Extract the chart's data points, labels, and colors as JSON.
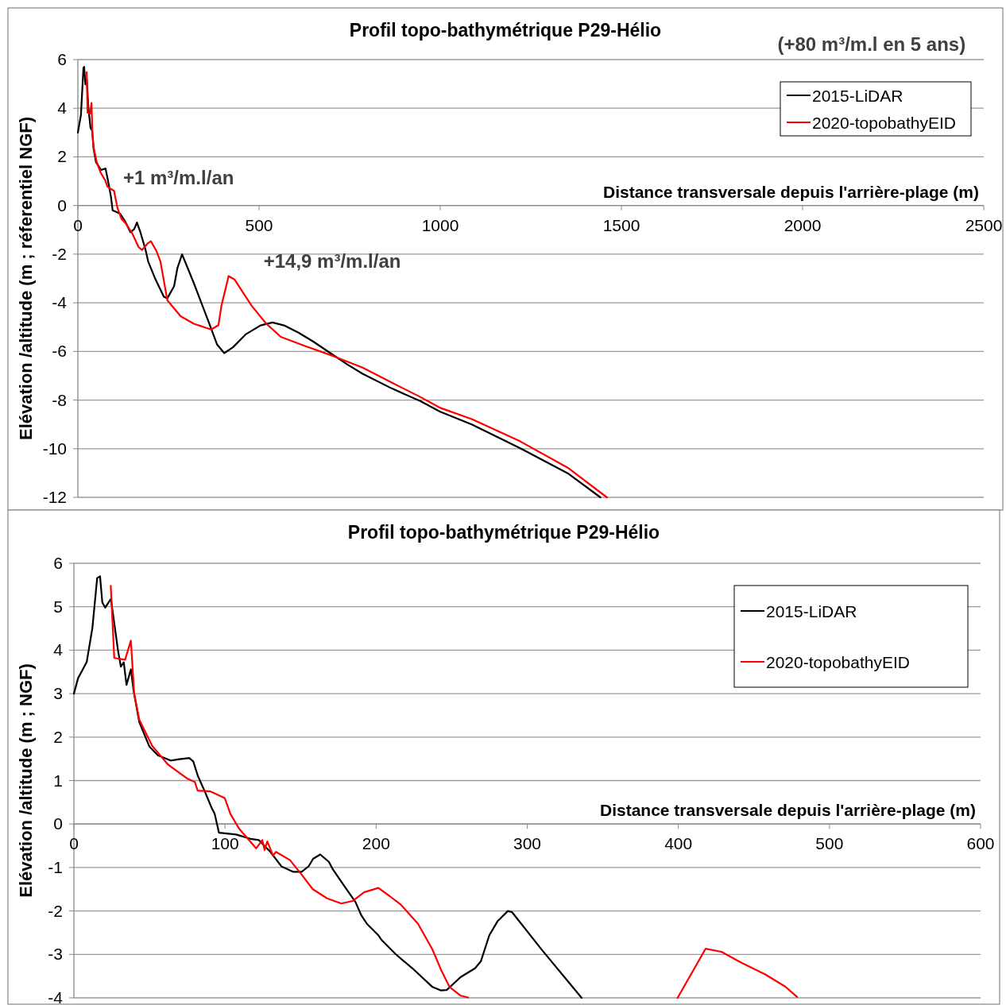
{
  "chart_data": [
    {
      "type": "line",
      "title": "Profil topo-bathymétrique P29-Hélio",
      "xlabel": "Distance transversale depuis l'arrière-plage (m)",
      "ylabel": "Elévation /altitude (m ; réferentiel NGF)",
      "xlim": [
        0,
        2500
      ],
      "xticks": [
        0,
        500,
        1000,
        1500,
        2000,
        2500
      ],
      "ylim": [
        -12,
        6
      ],
      "yticks": [
        -12,
        -10,
        -8,
        -6,
        -4,
        -2,
        0,
        2,
        4,
        6
      ],
      "grid": "y",
      "legend": "top right",
      "annotations": [
        "(+80  m³/m.l en 5 ans)",
        "+1 m³/m.l/an",
        "+14,9 m³/m.l/an"
      ],
      "series": [
        {
          "name": "2015-LiDAR",
          "color": "#000000",
          "x": [
            0,
            8.5,
            15.4,
            17.3,
            20.7,
            24.5,
            29.2,
            34.8,
            39.5,
            43.3,
            50,
            64,
            76.3,
            82,
            91.3,
            96,
            116.8,
            130,
            145,
            155.4,
            163,
            171.5,
            186.4,
            194,
            212.8,
            237.3,
            246.7,
            265.5,
            274.9,
            287.6,
            319.7,
            360,
            384,
            404,
            428,
            464,
            504,
            537,
            569,
            609,
            649,
            697,
            745,
            786,
            866,
            946,
            1000,
            1087,
            1221,
            1354,
            1442
          ],
          "values": [
            3.0,
            3.73,
            5.66,
            5.7,
            4.98,
            5.18,
            3.99,
            3.2,
            3.07,
            2.34,
            1.78,
            1.46,
            1.52,
            1.11,
            0.36,
            -0.2,
            -0.34,
            -0.64,
            -1.1,
            -0.97,
            -0.7,
            -1.05,
            -1.8,
            -2.3,
            -2.99,
            -3.75,
            -3.82,
            -3.32,
            -2.56,
            -2.01,
            -3.18,
            -4.75,
            -5.71,
            -6.07,
            -5.83,
            -5.29,
            -4.93,
            -4.81,
            -4.93,
            -5.23,
            -5.59,
            -6.07,
            -6.55,
            -6.92,
            -7.52,
            -8.05,
            -8.48,
            -9.0,
            -9.98,
            -11.03,
            -12
          ]
        },
        {
          "name": "2020-topobathyEID",
          "color": "#ff0000",
          "x": [
            24.4,
            26.7,
            33.9,
            37.7,
            39.9,
            43.3,
            51.8,
            62.2,
            75.3,
            81.9,
            99.8,
            109.2,
            120.6,
            131.8,
            150.6,
            167.5,
            177,
            192,
            201.5,
            216.5,
            227.8,
            247,
            283.5,
            320,
            368,
            388,
            396,
            416,
            432,
            480,
            520,
            560,
            625,
            705,
            786,
            866,
            946,
            1000,
            1087,
            1221,
            1354,
            1460
          ],
          "values": [
            5.48,
            3.82,
            3.78,
            4.22,
            3.0,
            2.4,
            1.8,
            1.37,
            1.04,
            0.77,
            0.6,
            -0.1,
            -0.56,
            -0.73,
            -1.16,
            -1.71,
            -1.83,
            -1.57,
            -1.47,
            -1.86,
            -2.3,
            -3.9,
            -4.55,
            -4.86,
            -5.1,
            -4.92,
            -4.13,
            -2.9,
            -3.04,
            -4.13,
            -4.86,
            -5.4,
            -5.77,
            -6.19,
            -6.67,
            -7.28,
            -7.88,
            -8.32,
            -8.78,
            -9.7,
            -10.8,
            -12
          ]
        }
      ]
    },
    {
      "type": "line",
      "title": "Profil topo-bathymétrique P29-Hélio",
      "xlabel": "Distance transversale depuis l'arrière-plage (m)",
      "ylabel": "Elévation /altitude (m ; NGF)",
      "xlim": [
        0,
        600
      ],
      "xticks": [
        0,
        100,
        200,
        300,
        400,
        500,
        600
      ],
      "ylim": [
        -4,
        6
      ],
      "yticks": [
        -4,
        -3,
        -2,
        -1,
        0,
        1,
        2,
        3,
        4,
        5,
        6
      ],
      "grid": "y",
      "legend": "top right",
      "series": [
        {
          "name": "2015-LiDAR",
          "color": "#000000",
          "x": [
            0,
            2.8,
            8.5,
            12.2,
            15.4,
            17.3,
            18.8,
            20.7,
            24.5,
            29.2,
            31.1,
            33,
            34.8,
            37.7,
            39.5,
            43.3,
            50,
            55.6,
            64,
            69.7,
            76.3,
            79,
            82,
            86.6,
            91.3,
            93.2,
            96,
            107.3,
            116.8,
            122.4,
            130,
            137.5,
            145,
            150.7,
            155.4,
            158.3,
            163,
            168.7,
            171.5,
            179,
            186.4,
            190.2,
            194,
            201.5,
            203.4,
            212.8,
            218.5,
            224,
            237.3,
            243,
            246.7,
            256,
            265.5,
            269.3,
            274.9,
            280.5,
            287.2,
            290,
            309.8,
            336
          ],
          "values": [
            3.0,
            3.36,
            3.73,
            4.5,
            5.66,
            5.7,
            5.1,
            4.98,
            5.18,
            3.99,
            3.62,
            3.72,
            3.2,
            3.56,
            3.07,
            2.34,
            1.78,
            1.58,
            1.46,
            1.49,
            1.52,
            1.44,
            1.11,
            0.75,
            0.36,
            0.23,
            -0.2,
            -0.24,
            -0.34,
            -0.37,
            -0.64,
            -0.98,
            -1.1,
            -1.1,
            -0.97,
            -0.8,
            -0.7,
            -0.87,
            -1.05,
            -1.43,
            -1.8,
            -2.1,
            -2.3,
            -2.56,
            -2.66,
            -2.99,
            -3.16,
            -3.32,
            -3.75,
            -3.83,
            -3.82,
            -3.52,
            -3.32,
            -3.16,
            -2.56,
            -2.23,
            -2.0,
            -2.03,
            -2.9,
            -4.0
          ]
        },
        {
          "name": "2020-topobathyEID",
          "color": "#ff0000",
          "x": [
            24.4,
            26.7,
            33.9,
            37.7,
            39.9,
            43.3,
            51.8,
            62.2,
            75.3,
            80,
            81.9,
            90.4,
            99.8,
            103.6,
            109.2,
            120.6,
            124.7,
            126.2,
            128,
            131.8,
            133.7,
            143,
            150.6,
            158.1,
            167.5,
            177,
            184.5,
            192,
            201.5,
            209,
            216.5,
            227.8,
            237.3,
            242.9,
            248.6,
            256,
            260.8,
            330,
            399.5,
            418,
            428.5,
            441.7,
            457.5,
            470.7,
            478.6
          ],
          "values": [
            5.48,
            3.82,
            3.78,
            4.22,
            3.0,
            2.4,
            1.8,
            1.37,
            1.04,
            0.97,
            0.77,
            0.75,
            0.6,
            0.23,
            -0.1,
            -0.56,
            -0.37,
            -0.6,
            -0.4,
            -0.73,
            -0.64,
            -0.83,
            -1.16,
            -1.5,
            -1.71,
            -1.83,
            -1.77,
            -1.57,
            -1.47,
            -1.66,
            -1.86,
            -2.3,
            -2.89,
            -3.35,
            -3.75,
            -3.95,
            -3.99,
            null,
            -4.0,
            -2.87,
            -2.94,
            -3.19,
            -3.46,
            -3.74,
            -3.98
          ]
        }
      ]
    }
  ]
}
